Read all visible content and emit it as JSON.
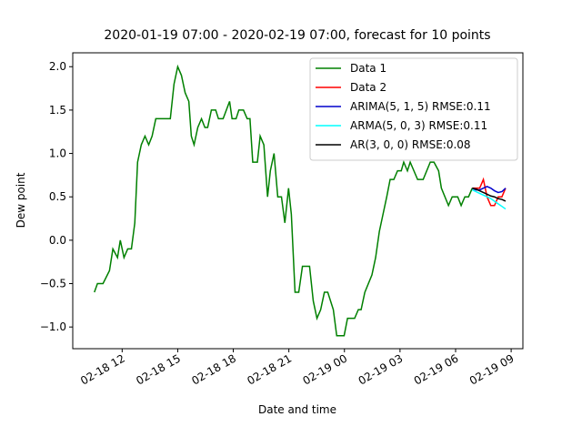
{
  "chart_data": {
    "type": "line",
    "title": "2020-01-19 07:00 - 2020-02-19 07:00, forecast for 10 points",
    "x_label": "Date and time",
    "y_label": "Dew point",
    "xlim": [
      "02-18 09:20",
      "02-19 09:38"
    ],
    "xticks": [
      {
        "value": "02-18 12:00",
        "label": "02-18 12"
      },
      {
        "value": "02-18 15:00",
        "label": "02-18 15"
      },
      {
        "value": "02-18 18:00",
        "label": "02-18 18"
      },
      {
        "value": "02-18 21:00",
        "label": "02-18 21"
      },
      {
        "value": "02-19 00:00",
        "label": "02-19 00"
      },
      {
        "value": "02-19 03:00",
        "label": "02-19 03"
      },
      {
        "value": "02-19 06:00",
        "label": "02-19 06"
      },
      {
        "value": "02-19 09:00",
        "label": "02-19 09"
      }
    ],
    "ylim": [
      -1.25,
      2.16
    ],
    "yticks": [
      {
        "value": -1,
        "label": "−1.0"
      },
      {
        "value": -0.5,
        "label": "−0.5"
      },
      {
        "value": 0,
        "label": "0.0"
      },
      {
        "value": 0.5,
        "label": "0.5"
      },
      {
        "value": 1,
        "label": "1.0"
      },
      {
        "value": 1.5,
        "label": "1.5"
      },
      {
        "value": 2,
        "label": "2.0"
      }
    ],
    "legend": "upper right",
    "series": [
      {
        "name": "Data 1",
        "color": "#008000",
        "x": [
          "02-18 10:30",
          "02-18 10:40",
          "02-18 10:58",
          "02-18 11:19",
          "02-18 11:30",
          "02-18 11:45",
          "02-18 11:54",
          "02-18 12:06",
          "02-18 12:18",
          "02-18 12:30",
          "02-18 12:41",
          "02-18 12:50",
          "02-18 13:02",
          "02-18 13:14",
          "02-18 13:26",
          "02-18 13:37",
          "02-18 13:49",
          "02-18 14:36",
          "02-18 14:48",
          "02-18 15:00",
          "02-18 15:12",
          "02-18 15:24",
          "02-18 15:36",
          "02-18 15:44",
          "02-18 15:53",
          "02-18 16:05",
          "02-18 16:17",
          "02-18 16:28",
          "02-18 16:37",
          "02-18 16:49",
          "02-18 17:03",
          "02-18 17:12",
          "02-18 17:27",
          "02-18 17:48",
          "02-18 17:56",
          "02-18 18:09",
          "02-18 18:18",
          "02-18 18:33",
          "02-18 18:45",
          "02-18 18:54",
          "02-18 19:03",
          "02-18 19:18",
          "02-18 19:27",
          "02-18 19:39",
          "02-18 19:51",
          "02-18 20:00",
          "02-18 20:12",
          "02-18 20:24",
          "02-18 20:36",
          "02-18 20:47",
          "02-18 20:59",
          "02-18 21:08",
          "02-18 21:20",
          "02-18 21:32",
          "02-18 21:44",
          "02-18 22:07",
          "02-18 22:19",
          "02-18 22:31",
          "02-18 22:43",
          "02-18 22:55",
          "02-18 23:06",
          "02-18 23:24",
          "02-18 23:35",
          "02-18 23:59",
          "02-19 00:10",
          "02-19 00:33",
          "02-19 00:45",
          "02-19 00:54",
          "02-19 01:06",
          "02-19 01:29",
          "02-19 01:41",
          "02-19 01:53",
          "02-19 02:05",
          "02-19 02:17",
          "02-19 02:28",
          "02-19 02:40",
          "02-19 02:52",
          "02-19 03:04",
          "02-19 03:12",
          "02-19 03:24",
          "02-19 03:33",
          "02-19 03:57",
          "02-19 04:15",
          "02-19 04:38",
          "02-19 04:50",
          "02-19 05:05",
          "02-19 05:14",
          "02-19 05:37",
          "02-19 05:49",
          "02-19 06:07",
          "02-19 06:18",
          "02-19 06:30",
          "02-19 06:42",
          "02-19 06:54"
        ],
        "values": [
          -0.6,
          -0.5,
          -0.5,
          -0.35,
          -0.1,
          -0.2,
          0,
          -0.2,
          -0.1,
          -0.1,
          0.2,
          0.9,
          1.1,
          1.2,
          1.1,
          1.2,
          1.4,
          1.4,
          1.8,
          2,
          1.9,
          1.7,
          1.6,
          1.2,
          1.1,
          1.3,
          1.4,
          1.3,
          1.3,
          1.5,
          1.5,
          1.4,
          1.4,
          1.6,
          1.4,
          1.4,
          1.5,
          1.5,
          1.4,
          1.4,
          0.9,
          0.9,
          1.2,
          1.1,
          0.5,
          0.8,
          1,
          0.5,
          0.5,
          0.2,
          0.6,
          0.3,
          -0.6,
          -0.6,
          -0.3,
          -0.3,
          -0.7,
          -0.9,
          -0.8,
          -0.6,
          -0.6,
          -0.8,
          -1.1,
          -1.1,
          -0.9,
          -0.9,
          -0.8,
          -0.8,
          -0.6,
          -0.4,
          -0.2,
          0.1,
          0.3,
          0.5,
          0.7,
          0.7,
          0.8,
          0.8,
          0.9,
          0.8,
          0.9,
          0.7,
          0.7,
          0.9,
          0.9,
          0.8,
          0.6,
          0.4,
          0.5,
          0.5,
          0.4,
          0.5,
          0.5,
          0.6
        ]
      },
      {
        "name": "Data 2",
        "color": "#ff0000",
        "x": [
          "02-19 06:54",
          "02-19 07:06",
          "02-19 07:18",
          "02-19 07:30",
          "02-19 07:42",
          "02-19 07:54",
          "02-19 08:06",
          "02-19 08:18",
          "02-19 08:30",
          "02-19 08:42"
        ],
        "values": [
          0.6,
          0.6,
          0.6,
          0.7,
          0.5,
          0.4,
          0.4,
          0.5,
          0.5,
          0.6
        ]
      },
      {
        "name": "ARIMA(5, 1, 5) RMSE:0.11",
        "color": "#0000cc",
        "x": [
          "02-19 06:54",
          "02-19 07:06",
          "02-19 07:18",
          "02-19 07:30",
          "02-19 07:42",
          "02-19 07:54",
          "02-19 08:06",
          "02-19 08:18",
          "02-19 08:30",
          "02-19 08:42"
        ],
        "values": [
          0.6,
          0.58,
          0.58,
          0.6,
          0.62,
          0.6,
          0.57,
          0.55,
          0.56,
          0.6
        ]
      },
      {
        "name": "ARMA(5, 0, 3) RMSE:0.11",
        "color": "#00ffff",
        "x": [
          "02-19 06:54",
          "02-19 07:06",
          "02-19 07:18",
          "02-19 07:30",
          "02-19 07:42",
          "02-19 07:54",
          "02-19 08:06",
          "02-19 08:18",
          "02-19 08:30",
          "02-19 08:42"
        ],
        "values": [
          0.58,
          0.56,
          0.54,
          0.52,
          0.5,
          0.48,
          0.45,
          0.42,
          0.39,
          0.36
        ]
      },
      {
        "name": "AR(3, 0, 0) RMSE:0.08",
        "color": "#000000",
        "x": [
          "02-19 06:54",
          "02-19 07:06",
          "02-19 07:18",
          "02-19 07:30",
          "02-19 07:42",
          "02-19 07:54",
          "02-19 08:06",
          "02-19 08:18",
          "02-19 08:30",
          "02-19 08:42"
        ],
        "values": [
          0.6,
          0.59,
          0.57,
          0.55,
          0.53,
          0.51,
          0.5,
          0.48,
          0.47,
          0.45
        ]
      }
    ]
  }
}
